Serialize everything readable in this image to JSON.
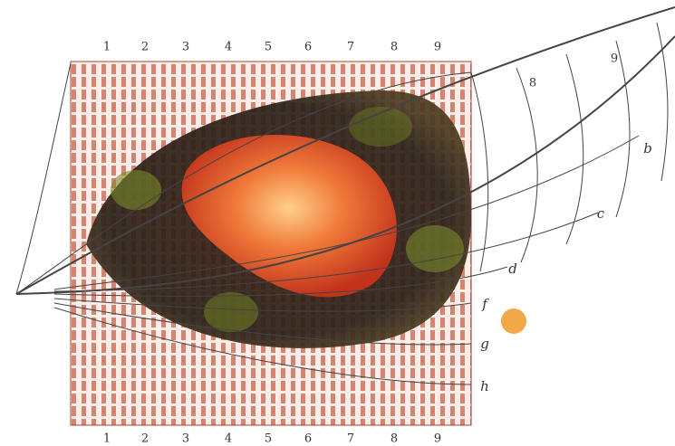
{
  "top_labels": [
    "1",
    "2",
    "3",
    "4",
    "5",
    "6",
    "7",
    "8",
    "9"
  ],
  "bottom_labels": [
    "1",
    "2",
    "3",
    "4",
    "5",
    "6",
    "7",
    "8",
    "9"
  ],
  "right_labels": [
    "b",
    "c",
    "d",
    "f",
    "g",
    "h"
  ],
  "curve_labels": [
    "8",
    "9"
  ]
}
